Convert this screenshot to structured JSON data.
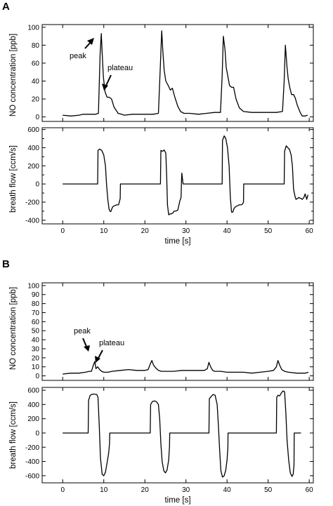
{
  "figure": {
    "panels": [
      {
        "letter": "A",
        "xlabel": "time [s]",
        "x_ticks": [
          0,
          10,
          20,
          30,
          40,
          50,
          60
        ],
        "no_chart": {
          "ylabel": "NO concentration [ppb]",
          "y_ticks": [
            0,
            20,
            40,
            60,
            80,
            100
          ],
          "annotations": [
            "peak",
            "plateau"
          ]
        },
        "flow_chart": {
          "ylabel": "breath flow [ccm/s]",
          "y_ticks": [
            -400,
            -300,
            -200,
            -100,
            0,
            100,
            200,
            300,
            400,
            500,
            600
          ],
          "y_tick_labels": [
            "-400",
            "-200",
            "0",
            "200",
            "400",
            "600"
          ]
        }
      },
      {
        "letter": "B",
        "xlabel": "time [s]",
        "x_ticks": [
          0,
          10,
          20,
          30,
          40,
          50,
          60
        ],
        "no_chart": {
          "ylabel": "NO concentration [ppb]",
          "y_ticks": [
            0,
            10,
            20,
            30,
            40,
            50,
            60,
            70,
            80,
            90,
            100
          ],
          "annotations": [
            "peak",
            "plateau"
          ]
        },
        "flow_chart": {
          "ylabel": "breath flow [ccm/s]",
          "y_ticks": [
            -600,
            -400,
            -200,
            0,
            200,
            400,
            600
          ]
        }
      }
    ]
  },
  "chart_data": [
    {
      "type": "line",
      "panel": "A",
      "ylabel": "NO concentration [ppb]",
      "xlim": [
        -5,
        61
      ],
      "ylim": [
        -5,
        103
      ],
      "series": [
        {
          "x": [
            0,
            2,
            4,
            5,
            6,
            8,
            8.7,
            9.1,
            9.4,
            9.6,
            9.9,
            10.3,
            10.8,
            11.3,
            11.9,
            12.5,
            13.5,
            14.3,
            15,
            17,
            20,
            22,
            23.3,
            23.8,
            24.1,
            24.4,
            24.7,
            25.1,
            25.7,
            26.2,
            26.7,
            27.3,
            28,
            28.7,
            29.5,
            31,
            33,
            35,
            37,
            38.4,
            38.8,
            39.1,
            39.5,
            39.8,
            40.2,
            40.6,
            41.1,
            41.6,
            42.2,
            43,
            44,
            46,
            48,
            50,
            52,
            53.5,
            53.9,
            54.2,
            54.6,
            54.9,
            55.3,
            55.7,
            56.2,
            56.6,
            57.1,
            57.8,
            58.3,
            59,
            59.6
          ],
          "y": [
            2,
            1,
            2,
            3,
            3,
            3,
            4,
            70,
            93,
            72,
            45,
            28,
            22,
            22,
            20,
            11,
            4,
            3,
            2,
            3,
            3,
            3,
            4,
            60,
            96,
            72,
            52,
            40,
            35,
            30,
            32,
            22,
            12,
            6,
            4,
            4,
            3,
            4,
            5,
            5,
            45,
            90,
            75,
            55,
            45,
            35,
            33,
            33,
            20,
            10,
            6,
            5,
            5,
            5,
            5,
            6,
            40,
            80,
            55,
            42,
            32,
            25,
            25,
            21,
            13,
            5,
            1,
            1,
            2
          ]
        }
      ]
    },
    {
      "type": "line",
      "panel": "A",
      "ylabel": "breath flow [ccm/s]",
      "xlim": [
        -5,
        61
      ],
      "ylim": [
        -440,
        620
      ],
      "series": [
        {
          "x": [
            0,
            8.5,
            8.6,
            9,
            9.5,
            10,
            10.4,
            10.7,
            11,
            11.3,
            11.5,
            11.7,
            11.9,
            12.2,
            12.6,
            13.1,
            13.6,
            14,
            14.05,
            20,
            23.8,
            23.9,
            24.3,
            24.7,
            25.1,
            25.3,
            25.5,
            25.8,
            26.1,
            26.4,
            26.8,
            27.1,
            27.4,
            28,
            28.2,
            28.5,
            28.8,
            28.9,
            29,
            29.3,
            38.8,
            38.9,
            39.3,
            39.7,
            40.1,
            40.5,
            40.8,
            41.1,
            41.4,
            41.7,
            42.1,
            42.5,
            43,
            43.4,
            43.8,
            44,
            44.05,
            50,
            53.9,
            54,
            54.4,
            54.8,
            55.2,
            55.6,
            55.9,
            56.2,
            56.6,
            56.8,
            57.1,
            57.5,
            58,
            58.3,
            58.7,
            59,
            59.4,
            59.7
          ],
          "y": [
            0,
            0,
            370,
            385,
            370,
            320,
            200,
            -20,
            -180,
            -280,
            -300,
            -305,
            -280,
            -250,
            -240,
            -230,
            -230,
            -160,
            0,
            0,
            0,
            370,
            360,
            375,
            340,
            100,
            -230,
            -340,
            -330,
            -330,
            -320,
            -300,
            -300,
            -290,
            -250,
            -190,
            -150,
            20,
            120,
            0,
            0,
            480,
            530,
            500,
            400,
            200,
            -150,
            -310,
            -310,
            -270,
            -250,
            -240,
            -230,
            -230,
            -220,
            -200,
            0,
            0,
            0,
            360,
            420,
            400,
            380,
            320,
            200,
            -60,
            -150,
            -170,
            -160,
            -150,
            -160,
            -170,
            -150,
            -110,
            -170,
            -120
          ]
        }
      ]
    },
    {
      "type": "line",
      "panel": "B",
      "ylabel": "NO concentration [ppb]",
      "xlim": [
        -5,
        61
      ],
      "ylim": [
        -5,
        103
      ],
      "series": [
        {
          "x": [
            0,
            2,
            4,
            5.5,
            6.5,
            7,
            7.4,
            7.8,
            8.1,
            8.5,
            9,
            9.5,
            10,
            11,
            12,
            14,
            16,
            18,
            20,
            20.8,
            21.3,
            21.7,
            22.1,
            22.6,
            23.3,
            24,
            25,
            27,
            29,
            31,
            33,
            34.5,
            35.2,
            35.6,
            36,
            36.5,
            37,
            37.6,
            38.5,
            40,
            42,
            44,
            46,
            48,
            50,
            51.3,
            52,
            52.4,
            52.8,
            53.3,
            54,
            55,
            57,
            59,
            59.8
          ],
          "y": [
            2,
            3,
            3,
            4,
            5,
            5,
            11,
            16,
            8,
            10,
            7,
            5,
            4,
            4,
            5,
            6,
            7,
            6,
            6,
            7,
            13,
            17,
            12,
            9,
            6,
            5,
            5,
            5,
            6,
            6,
            6,
            6,
            8,
            15,
            10,
            6,
            5,
            5,
            5,
            4,
            4,
            4,
            3,
            4,
            5,
            6,
            10,
            17,
            12,
            7,
            5,
            4,
            3,
            3,
            4
          ]
        }
      ]
    },
    {
      "type": "line",
      "panel": "B",
      "ylabel": "breath flow [ccm/s]",
      "xlim": [
        -5,
        61
      ],
      "ylim": [
        -700,
        640
      ],
      "series": [
        {
          "x": [
            0,
            6.2,
            6.3,
            6.7,
            7.2,
            7.8,
            8.3,
            8.6,
            8.9,
            9.2,
            9.6,
            10,
            10.4,
            10.8,
            11.2,
            11.4,
            11.45,
            20,
            21.3,
            21.4,
            21.8,
            22.3,
            22.8,
            23.3,
            23.6,
            23.9,
            24.2,
            24.6,
            25,
            25.4,
            25.8,
            26,
            26.05,
            34,
            35.6,
            35.7,
            36.1,
            36.6,
            37.1,
            37.6,
            37.9,
            38.2,
            38.5,
            38.9,
            39.3,
            39.7,
            40,
            40.2,
            40.25,
            48,
            52,
            52.1,
            52.4,
            52.8,
            53.2,
            53.6,
            54,
            54.3,
            54.6,
            55,
            55.4,
            55.8,
            56.1,
            56.3,
            56.35,
            58
          ],
          "y": [
            0,
            0,
            460,
            530,
            545,
            545,
            540,
            500,
            100,
            -350,
            -580,
            -600,
            -550,
            -420,
            -280,
            -150,
            0,
            0,
            0,
            400,
            440,
            450,
            440,
            400,
            200,
            -150,
            -400,
            -530,
            -560,
            -520,
            -380,
            -180,
            0,
            0,
            0,
            480,
            510,
            540,
            530,
            400,
            100,
            -250,
            -530,
            -620,
            -600,
            -520,
            -380,
            -200,
            0,
            0,
            0,
            500,
            530,
            520,
            560,
            590,
            580,
            300,
            -100,
            -380,
            -560,
            -610,
            -580,
            -450,
            0,
            0
          ]
        }
      ]
    }
  ]
}
